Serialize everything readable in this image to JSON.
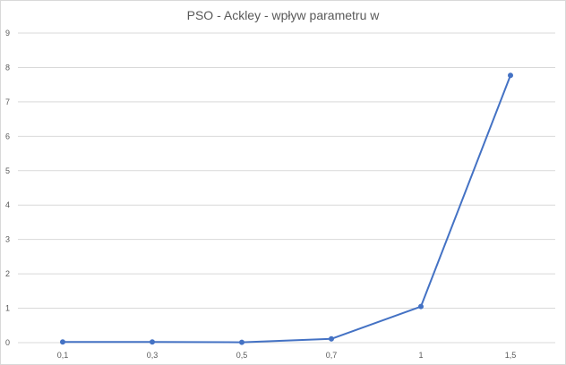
{
  "chart_data": {
    "type": "line",
    "title": "PSO - Ackley - wpływ parametru w",
    "xlabel": "",
    "ylabel": "",
    "categories": [
      "0,1",
      "0,3",
      "0,5",
      "0,7",
      "1",
      "1,5"
    ],
    "series": [
      {
        "values": [
          0.02,
          0.02,
          0.01,
          0.11,
          1.05,
          7.77
        ]
      }
    ],
    "ylim": [
      0,
      9
    ],
    "yticks": [
      "0",
      "1",
      "2",
      "3",
      "4",
      "5",
      "6",
      "7",
      "8",
      "9"
    ],
    "grid": "horizontal",
    "legend": "none",
    "colors": {
      "line": "#4472c4",
      "grid": "#d9d9d9",
      "text": "#595959"
    }
  }
}
